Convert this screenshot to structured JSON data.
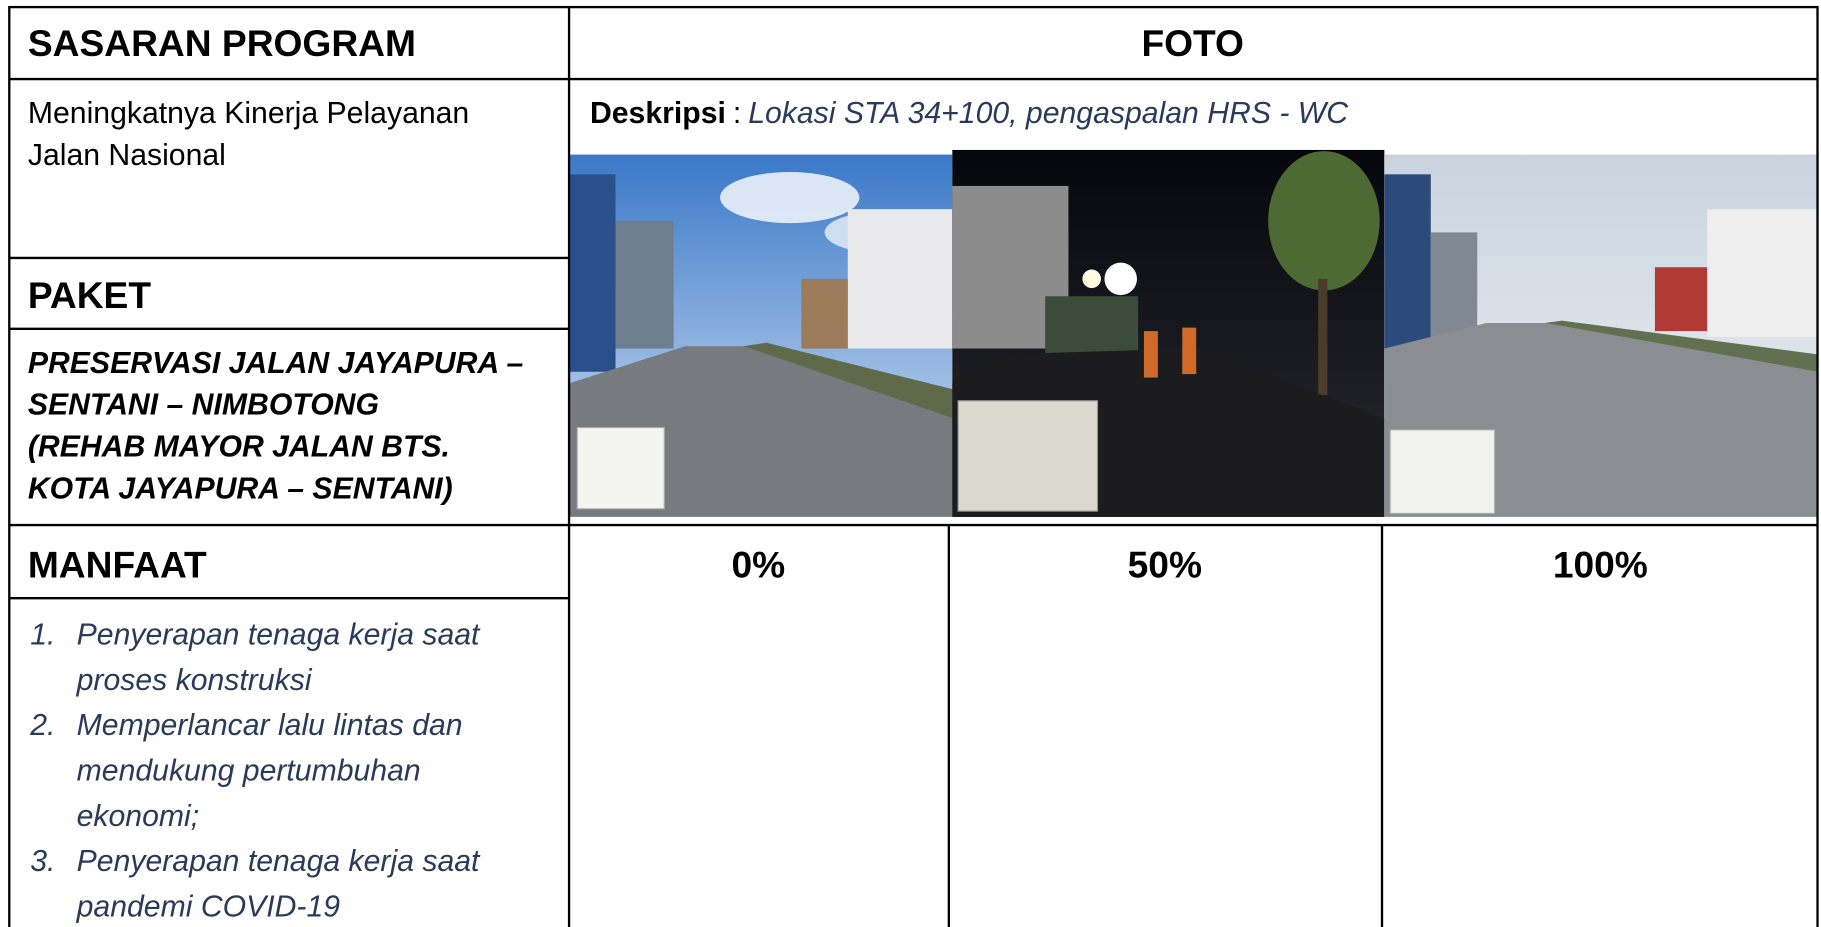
{
  "header": {
    "sasaran_program": "SASARAN PROGRAM",
    "foto": "FOTO"
  },
  "sasaran": {
    "lines": [
      "Meningkatnya Kinerja Pelayanan",
      "Jalan Nasional"
    ]
  },
  "deskripsi": {
    "label": "Deskripsi",
    "separator": ":",
    "text": "Lokasi STA 34+100, pengaspalan HRS - WC"
  },
  "paket": {
    "title": "PAKET",
    "lines": [
      "PRESERVASI JALAN JAYAPURA –",
      "SENTANI – NIMBOTONG",
      "(REHAB MAYOR  JALAN BTS.",
      "KOTA JAYAPURA – SENTANI)"
    ]
  },
  "manfaat": {
    "title": "MANFAAT",
    "items": [
      {
        "number": "1.",
        "lines": [
          "Penyerapan tenaga kerja saat",
          "proses konstruksi"
        ]
      },
      {
        "number": "2.",
        "lines": [
          "Memperlancar lalu lintas dan",
          "mendukung pertumbuhan",
          "ekonomi;"
        ]
      },
      {
        "number": "3.",
        "lines": [
          "Penyerapan tenaga kerja saat",
          "pandemi COVID-19"
        ]
      }
    ]
  },
  "progress": [
    "0%",
    "50%",
    "100%"
  ]
}
